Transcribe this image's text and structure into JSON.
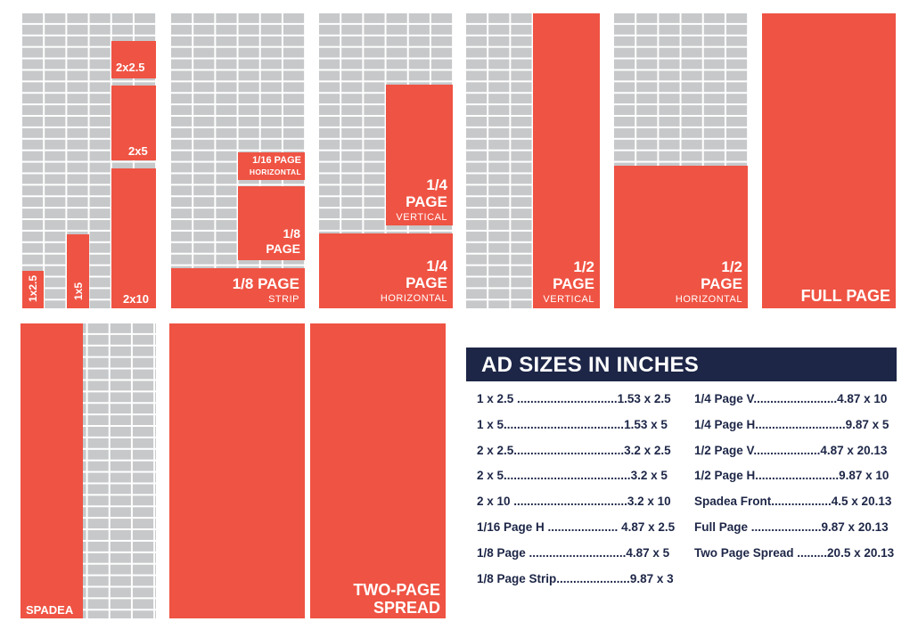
{
  "colors": {
    "ad_fill": "#ef5343",
    "grid_cell": "#c6c8ca",
    "grid_line": "#ffffff",
    "legend_header_bg": "#1d2647",
    "legend_text": "#1d2647"
  },
  "tiles": {
    "small_ads": {
      "ad_1x2_5": "1x2.5",
      "ad_1x5": "1x5",
      "ad_2x2_5": "2x2.5",
      "ad_2x5": "2x5",
      "ad_2x10": "2x10"
    },
    "eighth": {
      "sixteenth_line1": "1/16 PAGE",
      "sixteenth_line2": "HORIZONTAL",
      "eighth_line1": "1/8",
      "eighth_line2": "PAGE",
      "strip_line1": "1/8 PAGE",
      "strip_line2": "STRIP"
    },
    "quarter": {
      "vertical_line1": "1/4",
      "vertical_line2": "PAGE",
      "vertical_line3": "VERTICAL",
      "horizontal_line1": "1/4",
      "horizontal_line2": "PAGE",
      "horizontal_line3": "HORIZONTAL"
    },
    "half_vertical": {
      "line1": "1/2",
      "line2": "PAGE",
      "line3": "VERTICAL"
    },
    "half_horizontal": {
      "line1": "1/2",
      "line2": "PAGE",
      "line3": "HORIZONTAL"
    },
    "full_page": "FULL PAGE",
    "spadea": "SPADEA",
    "two_page_line1": "TWO-PAGE",
    "two_page_line2": "SPREAD"
  },
  "legend": {
    "title": "AD SIZES IN INCHES",
    "left": [
      {
        "name": "1 x 2.5 ",
        "size": "1.53 x 2.5"
      },
      {
        "name": "1 x 5",
        "size": "1.53 x 5"
      },
      {
        "name": "2 x 2.5",
        "size": "3.2 x 2.5"
      },
      {
        "name": "2 x 5",
        "size": "3.2 x 5"
      },
      {
        "name": "2 x 10 ",
        "size": "3.2 x 10"
      },
      {
        "name": "1/16 Page H ",
        "size": " 4.87 x 2.5"
      },
      {
        "name": "1/8 Page ",
        "size": "4.87 x 5"
      },
      {
        "name": "1/8 Page Strip",
        "size": "9.87 x 3"
      }
    ],
    "right": [
      {
        "name": "1/4 Page V",
        "size": "4.87 x 10"
      },
      {
        "name": "1/4 Page H",
        "size": "9.87 x 5"
      },
      {
        "name": "1/2 Page V",
        "size": "4.87 x 20.13"
      },
      {
        "name": "1/2 Page H",
        "size": "9.87 x 10"
      },
      {
        "name": "Spadea Front",
        "size": "4.5 x 20.13"
      },
      {
        "name": "Full Page ",
        "size": "9.87 x 20.13"
      },
      {
        "name": "Two Page Spread ",
        "size": "20.5 x 20.13"
      }
    ]
  }
}
